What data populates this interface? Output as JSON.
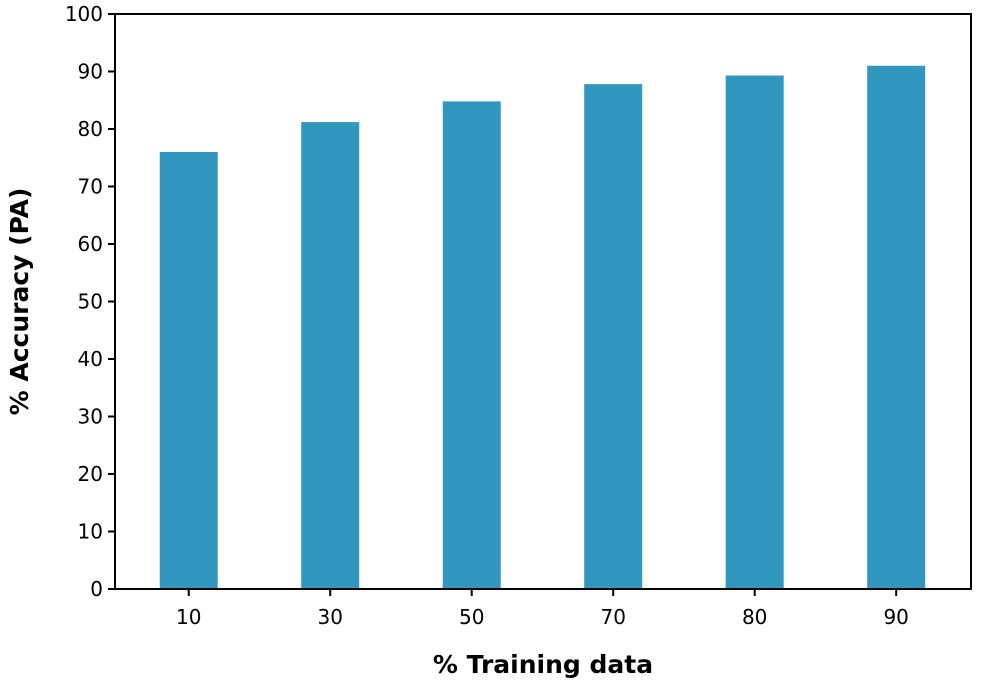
{
  "chart_data": {
    "type": "bar",
    "title": "",
    "xlabel": "% Training data",
    "ylabel": "% Accuracy (PA)",
    "categories": [
      "10",
      "30",
      "50",
      "70",
      "80",
      "90"
    ],
    "values": [
      76,
      81.2,
      84.8,
      87.8,
      89.3,
      91
    ],
    "ylim": [
      0,
      100
    ],
    "yticks": [
      0,
      10,
      20,
      30,
      40,
      50,
      60,
      70,
      80,
      90,
      100
    ],
    "grid": false,
    "legend": "none",
    "colors": {
      "bar": "#3197bf",
      "axis": "#000000"
    }
  }
}
